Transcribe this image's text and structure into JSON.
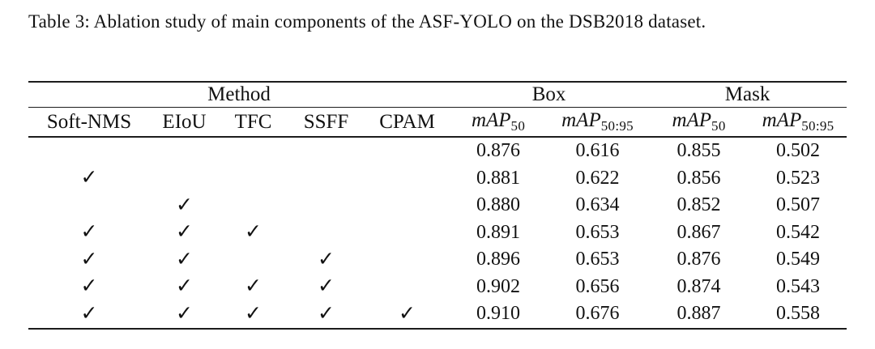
{
  "caption": "Table 3: Ablation study of main components of the ASF-YOLO on the DSB2018 dataset.",
  "table": {
    "group_headers": {
      "method": "Method",
      "box": "Box",
      "mask": "Mask"
    },
    "method_columns": [
      "Soft-NMS",
      "EIoU",
      "TFC",
      "SSFF",
      "CPAM"
    ],
    "metric_columns": [
      {
        "main": "mAP",
        "sub": "50"
      },
      {
        "main": "mAP",
        "sub": "50:95"
      },
      {
        "main": "mAP",
        "sub": "50"
      },
      {
        "main": "mAP",
        "sub": "50:95"
      }
    ],
    "check_glyph": "✓",
    "rows": [
      {
        "checks": [
          false,
          false,
          false,
          false,
          false
        ],
        "values": [
          "0.876",
          "0.616",
          "0.855",
          "0.502"
        ]
      },
      {
        "checks": [
          true,
          false,
          false,
          false,
          false
        ],
        "values": [
          "0.881",
          "0.622",
          "0.856",
          "0.523"
        ]
      },
      {
        "checks": [
          false,
          true,
          false,
          false,
          false
        ],
        "values": [
          "0.880",
          "0.634",
          "0.852",
          "0.507"
        ]
      },
      {
        "checks": [
          true,
          true,
          true,
          false,
          false
        ],
        "values": [
          "0.891",
          "0.653",
          "0.867",
          "0.542"
        ]
      },
      {
        "checks": [
          true,
          true,
          false,
          true,
          false
        ],
        "values": [
          "0.896",
          "0.653",
          "0.876",
          "0.549"
        ]
      },
      {
        "checks": [
          true,
          true,
          true,
          true,
          false
        ],
        "values": [
          "0.902",
          "0.656",
          "0.874",
          "0.543"
        ]
      },
      {
        "checks": [
          true,
          true,
          true,
          true,
          true
        ],
        "values": [
          "0.910",
          "0.676",
          "0.887",
          "0.558"
        ]
      }
    ]
  },
  "colors": {
    "background": "#ffffff",
    "text": "#121212",
    "rule": "#1c1c1c"
  }
}
